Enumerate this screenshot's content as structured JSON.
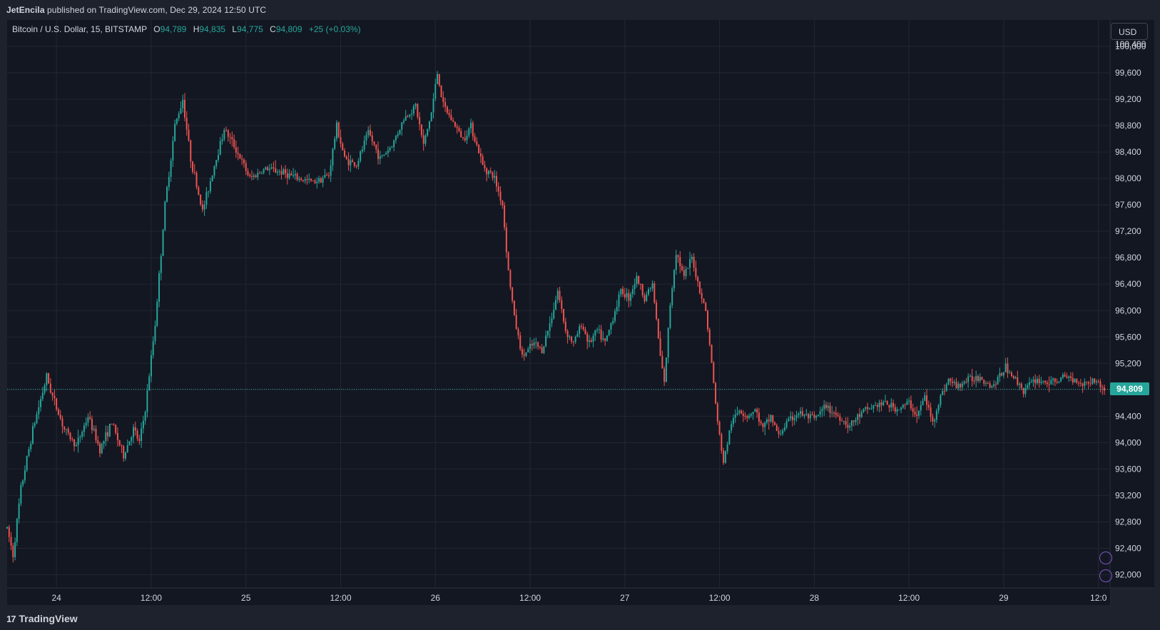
{
  "header": {
    "author": "JetEncila",
    "published_text": " published on TradingView.com, Dec 29, 2024 12:50 UTC"
  },
  "legend": {
    "symbol": "Bitcoin / U.S. Dollar, 15, BITSTAMP",
    "open_label": "O",
    "open": "94,789",
    "high_label": "H",
    "high": "94,835",
    "low_label": "L",
    "low": "94,775",
    "close_label": "C",
    "close": "94,809",
    "change": "+25 (+0.03%)"
  },
  "currency_button": "USD",
  "last_price_tag": "94,809",
  "footer": {
    "brand": "TradingView",
    "brand_mark": "17"
  },
  "colors": {
    "background": "#131722",
    "frame": "#1e222d",
    "grid": "#232732",
    "up": "#26a69a",
    "down": "#ef5350",
    "axis_text": "#d1d4dc",
    "accent_purple": "#7e57c2"
  },
  "chart_data": {
    "type": "candlestick",
    "symbol": "BTCUSD",
    "interval": "15",
    "exchange": "BITSTAMP",
    "ylim": [
      91800,
      100400
    ],
    "y_ticks": [
      92000,
      92400,
      92800,
      93200,
      93600,
      94000,
      94400,
      94800,
      95200,
      95600,
      96000,
      96400,
      96800,
      97200,
      97600,
      98000,
      98400,
      98800,
      99200,
      99600,
      100000
    ],
    "y_tick_labels": [
      "92,000",
      "92,400",
      "92,800",
      "93,200",
      "93,600",
      "94,000",
      "94,400",
      "94,800",
      "95,200",
      "95,600",
      "96,000",
      "96,400",
      "96,800",
      "97,200",
      "97,600",
      "98,000",
      "98,400",
      "98,800",
      "99,200",
      "99,600",
      "100,000"
    ],
    "y_tick_label_partial": "100,400",
    "xlim": [
      "2024-12-23 17:45",
      "2024-12-29 12:45"
    ],
    "x_ticks": [
      "2024-12-24 00:00",
      "2024-12-24 12:00",
      "2024-12-25 00:00",
      "2024-12-25 12:00",
      "2024-12-26 00:00",
      "2024-12-26 12:00",
      "2024-12-27 00:00",
      "2024-12-27 12:00",
      "2024-12-28 00:00",
      "2024-12-28 12:00",
      "2024-12-29 00:00",
      "2024-12-29 12:00"
    ],
    "x_tick_labels": [
      "24",
      "12:00",
      "25",
      "12:00",
      "26",
      "12:00",
      "27",
      "12:00",
      "28",
      "12:00",
      "29",
      "12:0"
    ],
    "last_price": 94809,
    "grid": true,
    "path": [
      [
        "2024-12-23 17:45",
        92700
      ],
      [
        "2024-12-23 18:30",
        92300
      ],
      [
        "2024-12-23 19:30",
        93300
      ],
      [
        "2024-12-23 21:00",
        94200
      ],
      [
        "2024-12-23 22:45",
        95000
      ],
      [
        "2024-12-23 23:30",
        94700
      ],
      [
        "2024-12-24 01:00",
        94200
      ],
      [
        "2024-12-24 02:30",
        93950
      ],
      [
        "2024-12-24 04:00",
        94400
      ],
      [
        "2024-12-24 05:30",
        93900
      ],
      [
        "2024-12-24 07:00",
        94300
      ],
      [
        "2024-12-24 08:30",
        93800
      ],
      [
        "2024-12-24 09:45",
        94200
      ],
      [
        "2024-12-24 10:30",
        94000
      ],
      [
        "2024-12-24 11:15",
        94500
      ],
      [
        "2024-12-24 12:30",
        95800
      ],
      [
        "2024-12-24 13:45",
        97600
      ],
      [
        "2024-12-24 15:00",
        98800
      ],
      [
        "2024-12-24 16:00",
        99200
      ],
      [
        "2024-12-24 17:00",
        98300
      ],
      [
        "2024-12-24 18:30",
        97500
      ],
      [
        "2024-12-24 20:00",
        98200
      ],
      [
        "2024-12-24 21:15",
        98750
      ],
      [
        "2024-12-24 22:30",
        98500
      ],
      [
        "2024-12-25 00:30",
        98000
      ],
      [
        "2024-12-25 02:30",
        98150
      ],
      [
        "2024-12-25 04:30",
        98100
      ],
      [
        "2024-12-25 06:30",
        98000
      ],
      [
        "2024-12-25 08:30",
        97950
      ],
      [
        "2024-12-25 10:30",
        98050
      ],
      [
        "2024-12-25 11:30",
        98800
      ],
      [
        "2024-12-25 12:30",
        98300
      ],
      [
        "2024-12-25 14:00",
        98200
      ],
      [
        "2024-12-25 15:30",
        98700
      ],
      [
        "2024-12-25 17:00",
        98300
      ],
      [
        "2024-12-25 18:30",
        98500
      ],
      [
        "2024-12-25 20:00",
        98900
      ],
      [
        "2024-12-25 21:30",
        99100
      ],
      [
        "2024-12-25 22:30",
        98500
      ],
      [
        "2024-12-25 23:30",
        99000
      ],
      [
        "2024-12-26 00:15",
        99600
      ],
      [
        "2024-12-26 01:00",
        99100
      ],
      [
        "2024-12-26 02:30",
        98800
      ],
      [
        "2024-12-26 03:30",
        98600
      ],
      [
        "2024-12-26 04:30",
        98800
      ],
      [
        "2024-12-26 06:00",
        98200
      ],
      [
        "2024-12-26 07:30",
        98000
      ],
      [
        "2024-12-26 08:30",
        97600
      ],
      [
        "2024-12-26 09:15",
        96600
      ],
      [
        "2024-12-26 10:00",
        95900
      ],
      [
        "2024-12-26 11:00",
        95300
      ],
      [
        "2024-12-26 12:30",
        95500
      ],
      [
        "2024-12-26 13:30",
        95400
      ],
      [
        "2024-12-26 14:30",
        95800
      ],
      [
        "2024-12-26 15:30",
        96300
      ],
      [
        "2024-12-26 16:30",
        95700
      ],
      [
        "2024-12-26 17:30",
        95500
      ],
      [
        "2024-12-26 18:30",
        95800
      ],
      [
        "2024-12-26 19:30",
        95500
      ],
      [
        "2024-12-26 20:30",
        95700
      ],
      [
        "2024-12-26 21:30",
        95500
      ],
      [
        "2024-12-26 22:30",
        95900
      ],
      [
        "2024-12-26 23:30",
        96300
      ],
      [
        "2024-12-27 00:30",
        96200
      ],
      [
        "2024-12-27 01:30",
        96500
      ],
      [
        "2024-12-27 02:30",
        96200
      ],
      [
        "2024-12-27 03:30",
        96400
      ],
      [
        "2024-12-27 04:30",
        95300
      ],
      [
        "2024-12-27 05:00",
        94900
      ],
      [
        "2024-12-27 05:45",
        96100
      ],
      [
        "2024-12-27 06:30",
        96900
      ],
      [
        "2024-12-27 07:30",
        96500
      ],
      [
        "2024-12-27 08:30",
        96800
      ],
      [
        "2024-12-27 09:30",
        96300
      ],
      [
        "2024-12-27 10:15",
        96000
      ],
      [
        "2024-12-27 11:00",
        95200
      ],
      [
        "2024-12-27 11:45",
        94300
      ],
      [
        "2024-12-27 12:30",
        93700
      ],
      [
        "2024-12-27 13:30",
        94300
      ],
      [
        "2024-12-27 14:30",
        94500
      ],
      [
        "2024-12-27 15:30",
        94400
      ],
      [
        "2024-12-27 16:30",
        94500
      ],
      [
        "2024-12-27 17:30",
        94200
      ],
      [
        "2024-12-27 18:30",
        94400
      ],
      [
        "2024-12-27 19:30",
        94100
      ],
      [
        "2024-12-27 20:30",
        94300
      ],
      [
        "2024-12-27 22:00",
        94450
      ],
      [
        "2024-12-28 00:00",
        94350
      ],
      [
        "2024-12-28 01:30",
        94550
      ],
      [
        "2024-12-28 03:00",
        94400
      ],
      [
        "2024-12-28 04:30",
        94250
      ],
      [
        "2024-12-28 06:00",
        94450
      ],
      [
        "2024-12-28 07:30",
        94550
      ],
      [
        "2024-12-28 09:00",
        94600
      ],
      [
        "2024-12-28 10:30",
        94500
      ],
      [
        "2024-12-28 12:00",
        94600
      ],
      [
        "2024-12-28 13:00",
        94400
      ],
      [
        "2024-12-28 14:00",
        94700
      ],
      [
        "2024-12-28 15:00",
        94300
      ],
      [
        "2024-12-28 16:00",
        94700
      ],
      [
        "2024-12-28 17:00",
        94950
      ],
      [
        "2024-12-28 18:00",
        94850
      ],
      [
        "2024-12-28 19:30",
        94950
      ],
      [
        "2024-12-28 21:00",
        95000
      ],
      [
        "2024-12-28 22:30",
        94850
      ],
      [
        "2024-12-28 23:30",
        95000
      ],
      [
        "2024-12-29 00:15",
        95150
      ],
      [
        "2024-12-29 01:30",
        94950
      ],
      [
        "2024-12-29 02:30",
        94800
      ],
      [
        "2024-12-29 04:00",
        94950
      ],
      [
        "2024-12-29 06:00",
        94900
      ],
      [
        "2024-12-29 08:00",
        95000
      ],
      [
        "2024-12-29 10:00",
        94900
      ],
      [
        "2024-12-29 11:30",
        94950
      ],
      [
        "2024-12-29 12:45",
        94809
      ]
    ]
  }
}
